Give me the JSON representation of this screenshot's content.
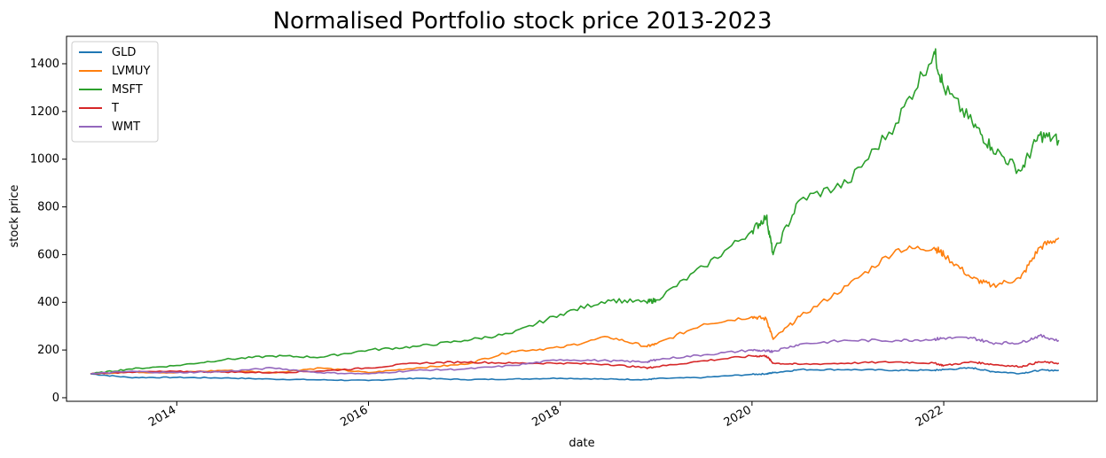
{
  "chart_data": {
    "type": "line",
    "title": "Normalised Portfolio stock price 2013-2023",
    "xlabel": "date",
    "ylabel": "stock price",
    "xlim": [
      2012.85,
      2023.6
    ],
    "ylim": [
      -15,
      1515
    ],
    "xticks": [
      2014,
      2016,
      2018,
      2020,
      2022
    ],
    "xtick_labels": [
      "2014",
      "2016",
      "2018",
      "2020",
      "2022"
    ],
    "yticks": [
      0,
      200,
      400,
      600,
      800,
      1000,
      1200,
      1400
    ],
    "ytick_labels": [
      "0",
      "200",
      "400",
      "600",
      "800",
      "1000",
      "1200",
      "1400"
    ],
    "grid": false,
    "legend_position": "top-left",
    "x": [
      2013.1,
      2013.5,
      2014.0,
      2014.5,
      2015.0,
      2015.5,
      2016.0,
      2016.5,
      2017.0,
      2017.5,
      2018.0,
      2018.5,
      2018.9,
      2019.0,
      2019.5,
      2020.0,
      2020.15,
      2020.22,
      2020.5,
      2021.0,
      2021.5,
      2021.9,
      2022.0,
      2022.3,
      2022.5,
      2022.8,
      2023.0,
      2023.2
    ],
    "series": [
      {
        "name": "GLD",
        "color": "#1f77b4",
        "values": [
          100,
          85,
          85,
          83,
          78,
          75,
          72,
          82,
          76,
          78,
          82,
          78,
          76,
          80,
          85,
          98,
          100,
          105,
          118,
          118,
          115,
          115,
          118,
          125,
          110,
          102,
          115,
          115
        ]
      },
      {
        "name": "LVMUY",
        "color": "#ff7f0e",
        "values": [
          100,
          108,
          105,
          115,
          105,
          125,
          105,
          125,
          140,
          195,
          210,
          255,
          215,
          225,
          310,
          340,
          330,
          245,
          340,
          470,
          620,
          630,
          600,
          500,
          470,
          500,
          630,
          670
        ]
      },
      {
        "name": "MSFT",
        "color": "#2ca02c",
        "values": [
          100,
          120,
          135,
          160,
          175,
          170,
          200,
          215,
          240,
          270,
          350,
          410,
          400,
          410,
          550,
          700,
          760,
          600,
          830,
          900,
          1150,
          1450,
          1300,
          1150,
          1050,
          950,
          1100,
          1080
        ]
      },
      {
        "name": "T",
        "color": "#d62728",
        "values": [
          100,
          108,
          110,
          108,
          105,
          112,
          125,
          145,
          150,
          145,
          145,
          140,
          125,
          130,
          155,
          175,
          175,
          145,
          140,
          145,
          150,
          145,
          135,
          150,
          140,
          130,
          150,
          145
        ]
      },
      {
        "name": "WMT",
        "color": "#9467bd",
        "values": [
          100,
          110,
          105,
          110,
          125,
          105,
          100,
          115,
          120,
          135,
          160,
          155,
          150,
          160,
          180,
          200,
          195,
          195,
          225,
          240,
          240,
          245,
          250,
          250,
          230,
          230,
          260,
          240
        ]
      }
    ]
  }
}
